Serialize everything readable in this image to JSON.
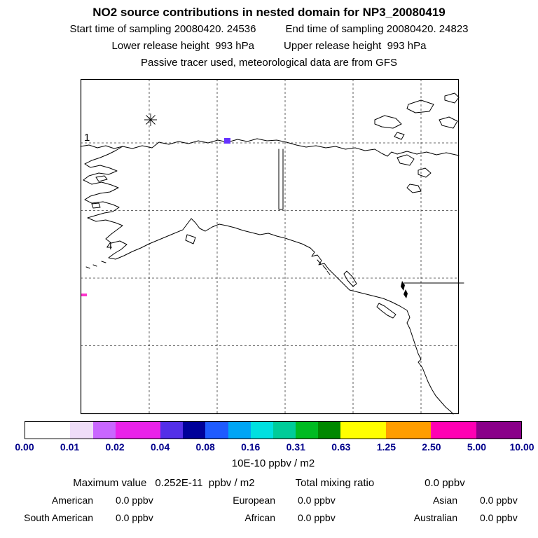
{
  "header": {
    "title": "NO2 source contributions in nested domain for NP3_20080419",
    "start_time": "Start time of sampling 20080420. 24536",
    "end_time": "End time of sampling 20080420. 24823",
    "lower_release": "Lower release height  993 hPa",
    "upper_release": "Upper release height  993 hPa",
    "tracer_note": "Passive tracer used, meteorological data are from GFS"
  },
  "map": {
    "site_labels": {
      "label1": "1",
      "label4": "4"
    },
    "markers": {
      "star": "star-marker",
      "square_color": "#6633ff",
      "dash_color": "#ff33cc"
    }
  },
  "chart_data": {
    "type": "heatmap",
    "title": "NO2 source contributions in nested domain for NP3_20080419",
    "region": "Alaska / northwestern North America nested model domain with dashed lat-lon gridlines",
    "colorbar": {
      "tick_labels": [
        "0.00",
        "0.01",
        "0.02",
        "0.04",
        "0.08",
        "0.16",
        "0.31",
        "0.63",
        "1.25",
        "2.50",
        "5.00",
        "10.00"
      ],
      "units_label": "10E-10 ppbv / m2",
      "tick_color": "#00008b",
      "segments": [
        {
          "color": "#ffffff",
          "width": 1
        },
        {
          "color": "#efddf8",
          "width": 0.5
        },
        {
          "color": "#c966ff",
          "width": 0.5
        },
        {
          "color": "#e922e9",
          "width": 1
        },
        {
          "color": "#5430e8",
          "width": 0.5
        },
        {
          "color": "#00019a",
          "width": 0.5
        },
        {
          "color": "#1f5bff",
          "width": 0.5
        },
        {
          "color": "#00a5f5",
          "width": 0.5
        },
        {
          "color": "#00e0e0",
          "width": 0.5
        },
        {
          "color": "#00cc99",
          "width": 0.5
        },
        {
          "color": "#00bb22",
          "width": 0.5
        },
        {
          "color": "#008800",
          "width": 0.5
        },
        {
          "color": "#ffff00",
          "width": 1
        },
        {
          "color": "#ff9d00",
          "width": 1
        },
        {
          "color": "#ff00b3",
          "width": 1
        },
        {
          "color": "#8a0089",
          "width": 1
        }
      ]
    },
    "visible_data_cells": [
      {
        "location": "on northern coast, center of domain",
        "color": "#6633ff"
      },
      {
        "location": "left map edge, mid-south",
        "color": "#ff33cc"
      }
    ],
    "annotations": {
      "maximum_value": "0.252E-11  ppbv / m2",
      "total_mixing_ratio": "0.0 ppbv",
      "regional_contributions": {
        "American": "0.0 ppbv",
        "European": "0.0 ppbv",
        "Asian": "0.0 ppbv",
        "South American": "0.0 ppbv",
        "African": "0.0 ppbv",
        "Australian": "0.0 ppbv"
      }
    }
  },
  "stats": {
    "max_label": "Maximum value",
    "max_value": "0.252E-11  ppbv / m2",
    "total_label": "Total mixing ratio",
    "total_value": "0.0 ppbv",
    "regions": [
      {
        "label": "American",
        "value": "0.0 ppbv"
      },
      {
        "label": "European",
        "value": "0.0 ppbv"
      },
      {
        "label": "Asian",
        "value": "0.0 ppbv"
      },
      {
        "label": "South American",
        "value": "0.0 ppbv"
      },
      {
        "label": "African",
        "value": "0.0 ppbv"
      },
      {
        "label": "Australian",
        "value": "0.0 ppbv"
      }
    ]
  }
}
